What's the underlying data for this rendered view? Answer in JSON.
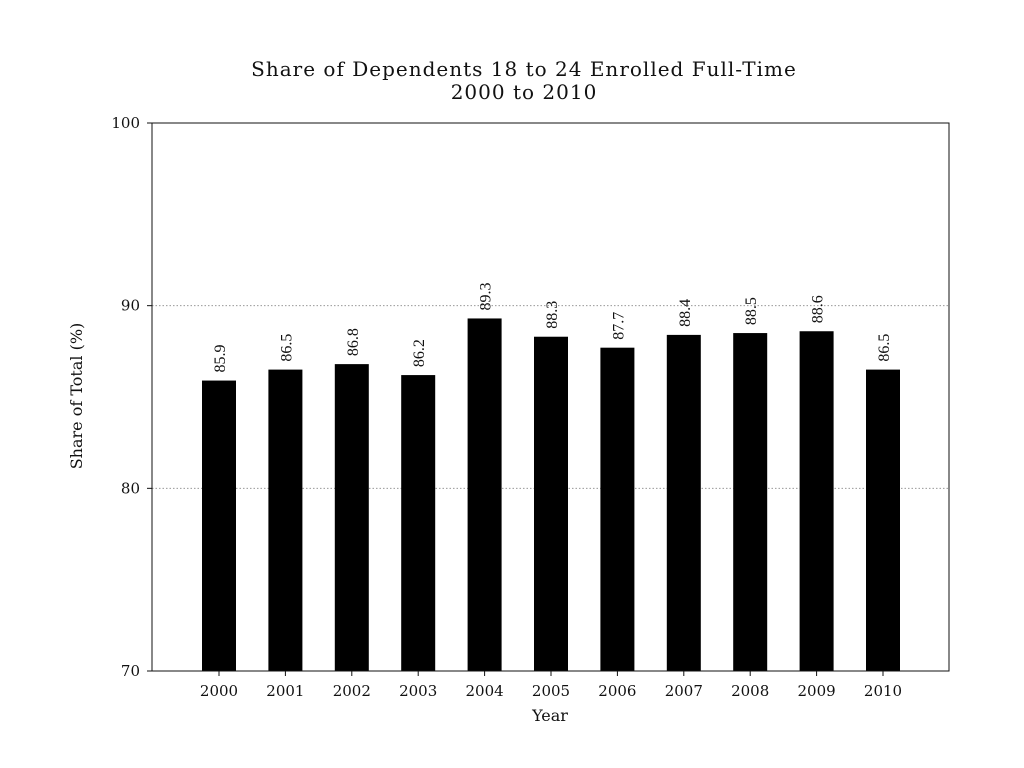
{
  "chart_data": {
    "type": "bar",
    "title": "Share of Dependents 18 to 24 Enrolled Full-Time",
    "subtitle": "2000 to 2010",
    "xlabel": "Year",
    "ylabel": "Share of Total (%)",
    "ylim": [
      70,
      100
    ],
    "yticks": [
      70,
      80,
      90,
      100
    ],
    "categories": [
      "2000",
      "2001",
      "2002",
      "2003",
      "2004",
      "2005",
      "2006",
      "2007",
      "2008",
      "2009",
      "2010"
    ],
    "values": [
      85.9,
      86.5,
      86.8,
      86.2,
      89.3,
      88.3,
      87.7,
      88.4,
      88.5,
      88.6,
      86.5
    ],
    "value_labels": [
      "85.9",
      "86.5",
      "86.8",
      "86.2",
      "89.3",
      "88.3",
      "87.7",
      "88.4",
      "88.5",
      "88.6",
      "86.5"
    ],
    "bar_color": "#000000",
    "grid": true,
    "grid_lines_at": [
      80,
      90
    ],
    "legend": "none"
  }
}
